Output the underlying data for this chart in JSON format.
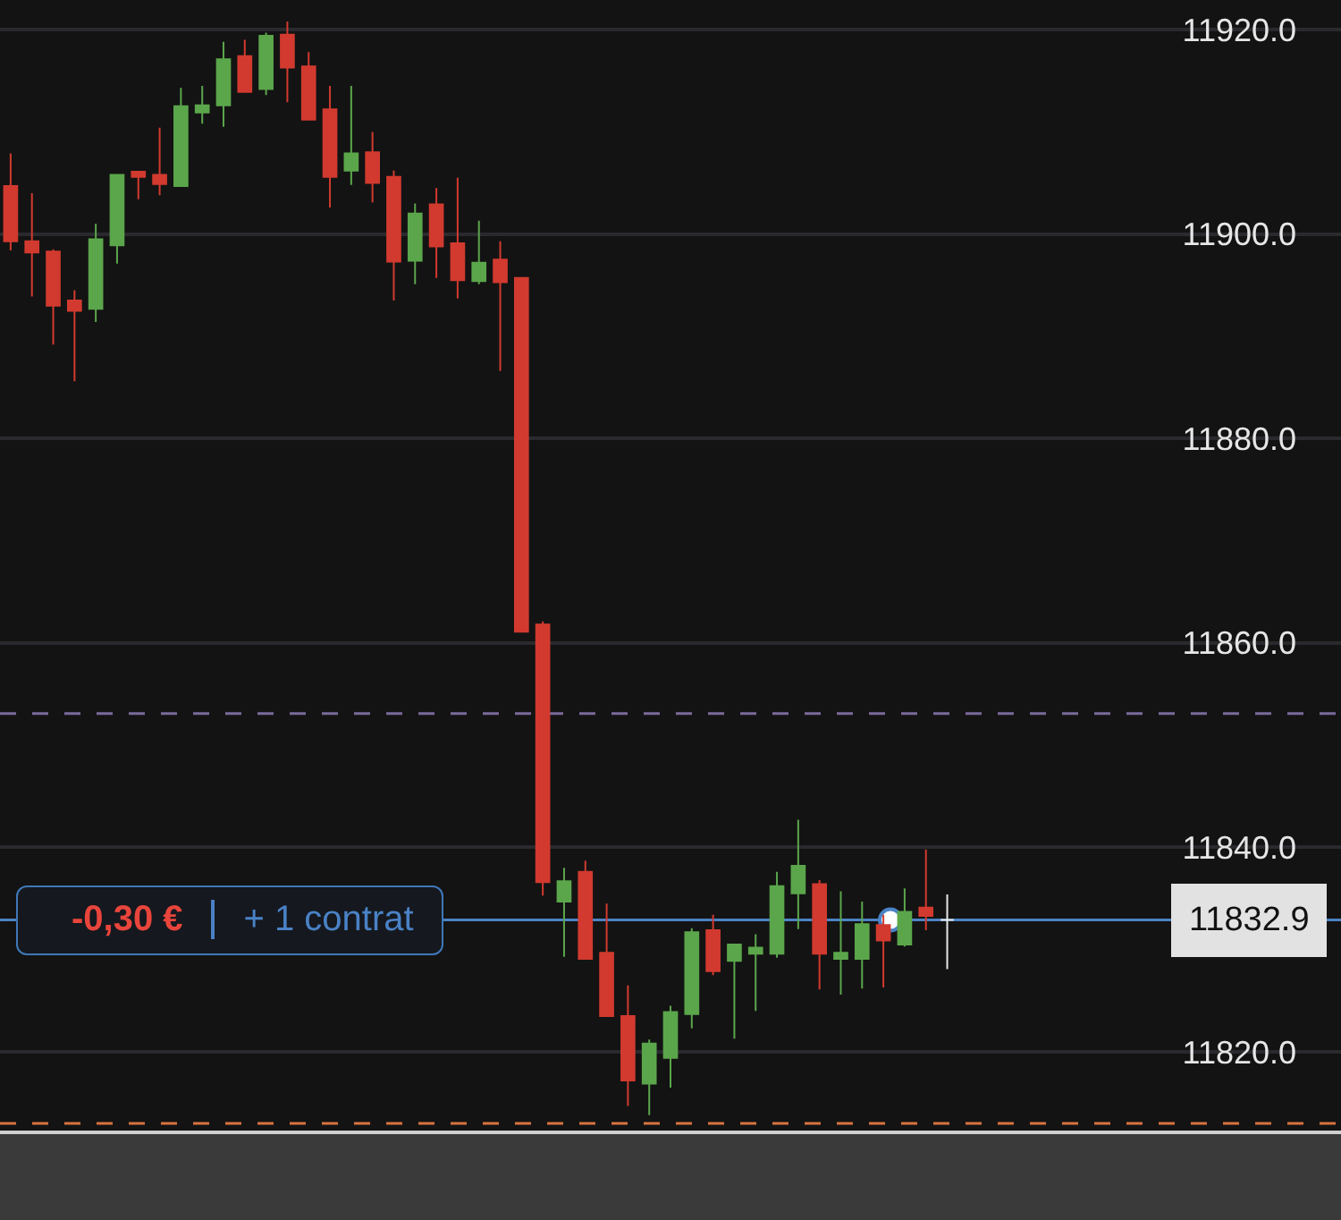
{
  "chart_data": {
    "type": "candlestick",
    "categories": [
      null,
      null,
      null,
      null,
      null,
      null,
      null,
      null,
      null,
      null,
      null,
      null,
      null,
      null,
      null,
      null,
      null,
      null,
      null,
      null,
      null,
      null,
      null,
      null,
      null,
      null,
      null,
      null,
      null,
      null,
      null,
      null,
      null,
      null,
      null,
      null,
      null,
      null,
      null,
      null,
      null,
      null,
      null,
      null,
      null,
      null,
      null,
      null,
      null,
      null,
      null,
      null,
      null,
      null,
      null,
      null,
      null,
      null,
      null,
      null,
      null,
      null,
      null
    ],
    "ohlc": [
      [
        11904.7,
        11907.9,
        11898.4,
        11899.3
      ],
      [
        11899.3,
        11904.0,
        11893.9,
        11898.2
      ],
      [
        11898.3,
        11898.5,
        11889.2,
        11893.0
      ],
      [
        11893.5,
        11894.5,
        11885.6,
        11892.5
      ],
      [
        11892.7,
        11901.0,
        11891.4,
        11899.5
      ],
      [
        11898.9,
        11905.8,
        11897.1,
        11905.8
      ],
      [
        11906.1,
        11906.1,
        11903.4,
        11905.6
      ],
      [
        11905.8,
        11910.4,
        11903.8,
        11904.9
      ],
      [
        11904.7,
        11914.3,
        11904.7,
        11912.5
      ],
      [
        11911.9,
        11914.5,
        11910.8,
        11912.6
      ],
      [
        11912.6,
        11918.8,
        11910.5,
        11917.1
      ],
      [
        11917.4,
        11919.0,
        11913.9,
        11913.9
      ],
      [
        11914.2,
        11919.7,
        11913.6,
        11919.4
      ],
      [
        11919.5,
        11920.8,
        11912.9,
        11916.3
      ],
      [
        11916.4,
        11917.8,
        11911.2,
        11911.2
      ],
      [
        11912.2,
        11914.5,
        11902.6,
        11905.6
      ],
      [
        11906.2,
        11914.5,
        11904.8,
        11907.9
      ],
      [
        11908.0,
        11910.0,
        11903.1,
        11905.0
      ],
      [
        11905.6,
        11906.2,
        11893.5,
        11897.3
      ],
      [
        11897.4,
        11903.0,
        11895.1,
        11902.0
      ],
      [
        11902.9,
        11904.5,
        11895.7,
        11898.8
      ],
      [
        11899.1,
        11905.5,
        11893.7,
        11895.5
      ],
      [
        11895.4,
        11901.3,
        11895.1,
        11897.2
      ],
      [
        11897.5,
        11899.3,
        11886.6,
        11895.3
      ],
      [
        11895.7,
        11895.7,
        11861.1,
        11861.1
      ],
      [
        11861.8,
        11862.1,
        11835.3,
        11836.6
      ],
      [
        11834.7,
        11838.0,
        11829.3,
        11836.7
      ],
      [
        11837.6,
        11838.7,
        11829.1,
        11829.1
      ],
      [
        11829.7,
        11834.5,
        11823.5,
        11823.5
      ],
      [
        11823.5,
        11826.5,
        11814.7,
        11817.2
      ],
      [
        11816.9,
        11821.2,
        11813.8,
        11820.8
      ],
      [
        11819.4,
        11824.5,
        11816.5,
        11823.9
      ],
      [
        11823.7,
        11832.1,
        11822.3,
        11831.7
      ],
      [
        11831.9,
        11833.4,
        11827.5,
        11827.9
      ],
      [
        11828.9,
        11830.5,
        11821.3,
        11830.5
      ],
      [
        11829.6,
        11831.5,
        11824.0,
        11830.2
      ],
      [
        11829.6,
        11837.6,
        11829.2,
        11836.2
      ],
      [
        11835.5,
        11842.7,
        11832.0,
        11838.2
      ],
      [
        11836.4,
        11836.8,
        11826.1,
        11829.6
      ],
      [
        11829.1,
        11835.7,
        11825.6,
        11829.7
      ],
      [
        11829.1,
        11834.7,
        11826.2,
        11832.5
      ],
      [
        11832.4,
        11833.4,
        11826.3,
        11830.9
      ],
      [
        11830.5,
        11836.0,
        11830.3,
        11833.7
      ],
      [
        11834.1,
        11839.8,
        11831.9,
        11833.3
      ],
      [
        11832.9,
        11835.4,
        11828.1,
        11832.9
      ],
      null,
      null,
      null,
      null,
      null,
      null,
      null,
      null,
      null,
      null,
      null,
      null,
      null,
      null,
      null,
      null,
      null,
      null
    ],
    "colors": [
      "#d23a2f",
      "#d23a2f",
      "#d23a2f",
      "#d23a2f",
      "#5ba64b",
      "#5ba64b",
      "#d23a2f",
      "#d23a2f",
      "#5ba64b",
      "#5ba64b",
      "#5ba64b",
      "#d23a2f",
      "#5ba64b",
      "#d23a2f",
      "#d23a2f",
      "#d23a2f",
      "#5ba64b",
      "#d23a2f",
      "#d23a2f",
      "#5ba64b",
      "#d23a2f",
      "#d23a2f",
      "#5ba64b",
      "#d23a2f",
      "#d23a2f",
      "#d23a2f",
      "#5ba64b",
      "#d23a2f",
      "#d23a2f",
      "#d23a2f",
      "#5ba64b",
      "#5ba64b",
      "#5ba64b",
      "#d23a2f",
      "#5ba64b",
      "#5ba64b",
      "#5ba64b",
      "#5ba64b",
      "#d23a2f",
      "#5ba64b",
      "#5ba64b",
      "#d23a2f",
      "#5ba64b",
      "#d23a2f",
      "#e8e8e8",
      null,
      null,
      null,
      null,
      null,
      null,
      null,
      null,
      null,
      null,
      null,
      null,
      null,
      null,
      null,
      null,
      null,
      null
    ],
    "ylim": [
      11812.3,
      11922.9
    ],
    "yticks": [
      {
        "value": 11820,
        "label": "11820.0"
      },
      {
        "value": 11840,
        "label": "11840.0"
      },
      {
        "value": 11860,
        "label": "11860.0"
      },
      {
        "value": 11880,
        "label": "11880.0"
      },
      {
        "value": 11900,
        "label": "11900.0"
      },
      {
        "value": 11920,
        "label": "11920.0"
      }
    ],
    "grid": "y",
    "tick_labels": "y",
    "ref_lines": [
      {
        "axis": "y",
        "value": 11853.1,
        "color": "#7b6a9c",
        "line_style": "dashed"
      },
      {
        "axis": "y",
        "value": 11813.0,
        "color": "#d9733f",
        "line_style": "dashed"
      },
      {
        "axis": "y",
        "value": 11832.9,
        "label": "11832.9",
        "color": "#4b82c3",
        "line_style": "solid"
      }
    ],
    "annotations": [
      {
        "text": "-0,30 €",
        "y": 11832.9
      },
      {
        "text": "+ 1 contrat",
        "y": 11832.9
      }
    ]
  }
}
